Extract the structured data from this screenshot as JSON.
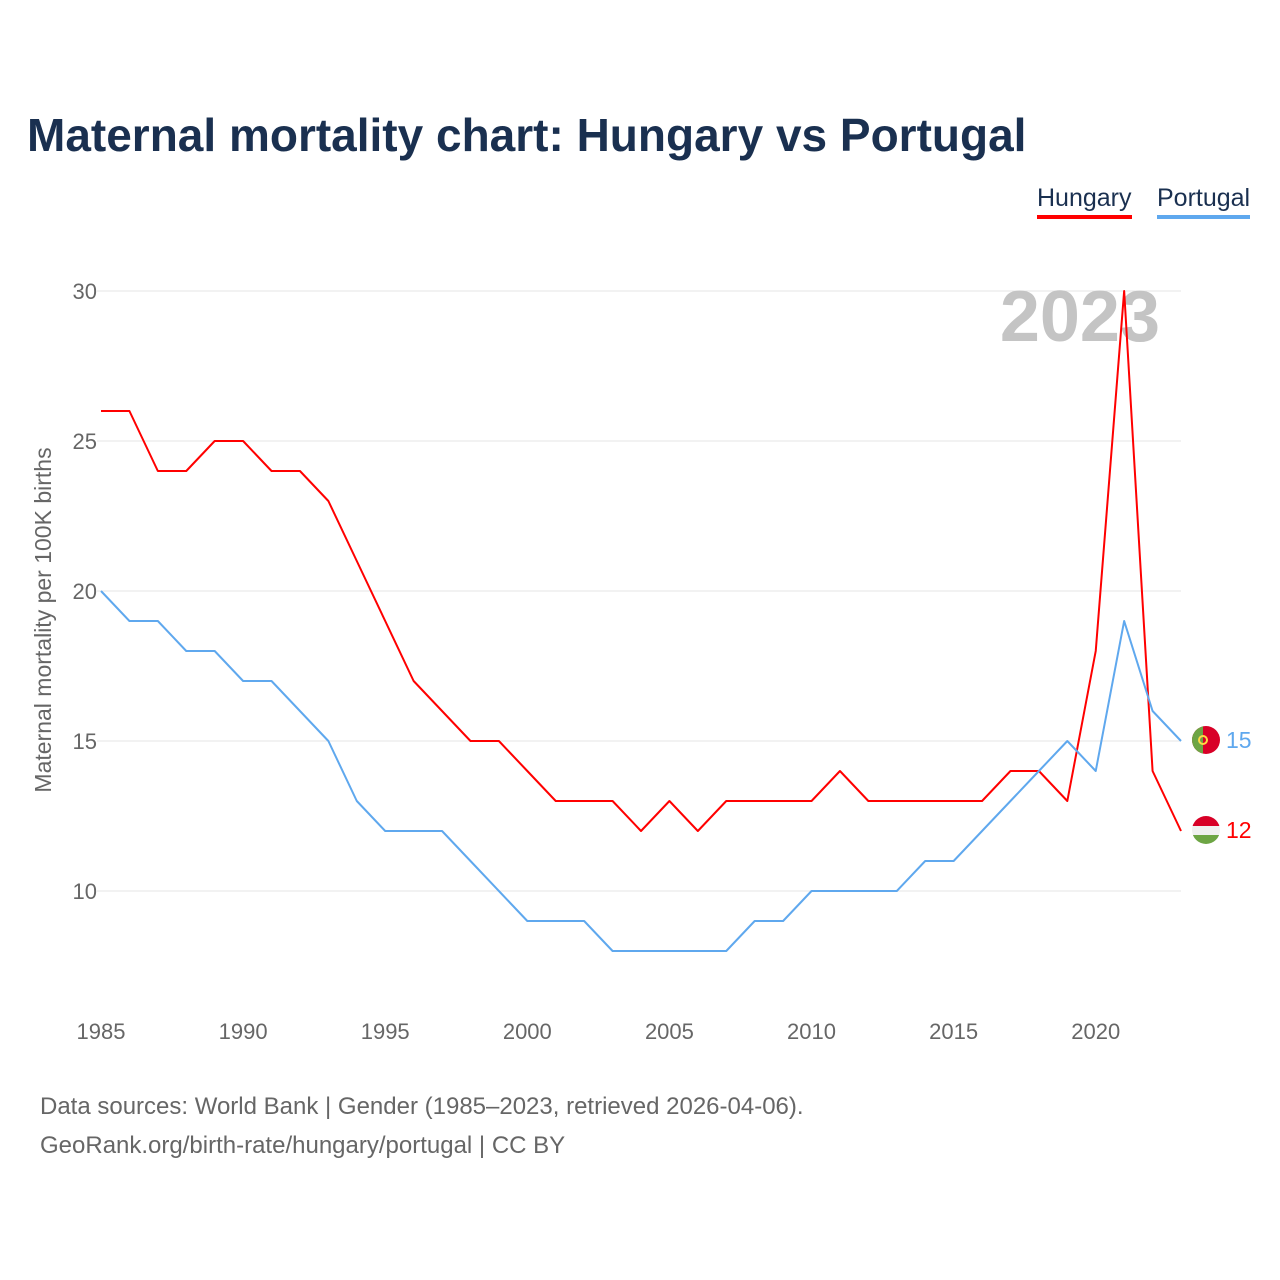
{
  "title": "Maternal mortality chart: Hungary vs Portugal",
  "year_label": "2023",
  "footer": {
    "line1": "Data sources: World Bank | Gender (1985–2023, retrieved 2026-04-06).",
    "line2": "GeoRank.org/birth-rate/hungary/portugal | CC BY"
  },
  "chart_data": {
    "type": "line",
    "title": "Maternal mortality chart: Hungary vs Portugal",
    "ylabel": "Maternal mortality per 100K births",
    "xlabel": "",
    "ylim": [
      10,
      30
    ],
    "xlim": [
      1985,
      2023
    ],
    "yticks": [
      10,
      15,
      20,
      25,
      30
    ],
    "xticks": [
      1985,
      1990,
      1995,
      2000,
      2005,
      2010,
      2015,
      2020
    ],
    "legend": "top-right",
    "x": [
      1985,
      1986,
      1987,
      1988,
      1989,
      1990,
      1991,
      1992,
      1993,
      1994,
      1995,
      1996,
      1997,
      1998,
      1999,
      2000,
      2001,
      2002,
      2003,
      2004,
      2005,
      2006,
      2007,
      2008,
      2009,
      2010,
      2011,
      2012,
      2013,
      2014,
      2015,
      2016,
      2017,
      2018,
      2019,
      2020,
      2021,
      2022,
      2023
    ],
    "series": [
      {
        "name": "Hungary",
        "color": "#ff0000",
        "end_label": "12",
        "values": [
          26,
          26,
          24,
          24,
          25,
          25,
          24,
          24,
          23,
          21,
          19,
          17,
          16,
          15,
          15,
          14,
          13,
          13,
          13,
          12,
          13,
          12,
          13,
          13,
          13,
          13,
          14,
          13,
          13,
          13,
          13,
          13,
          14,
          14,
          13,
          18,
          30,
          14,
          12
        ]
      },
      {
        "name": "Portugal",
        "color": "#5fa8ee",
        "end_label": "15",
        "values": [
          20,
          19,
          19,
          18,
          18,
          17,
          17,
          16,
          15,
          13,
          12,
          12,
          12,
          11,
          10,
          9,
          9,
          9,
          8,
          8,
          8,
          8,
          8,
          9,
          9,
          10,
          10,
          10,
          10,
          11,
          11,
          12,
          13,
          14,
          15,
          14,
          19,
          16,
          15
        ]
      }
    ]
  }
}
